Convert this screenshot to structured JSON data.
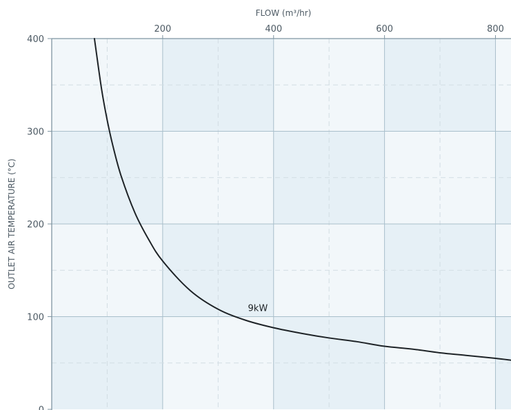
{
  "chart_data": {
    "type": "line",
    "title": "",
    "xlabel": "FLOW (m³/hr)",
    "ylabel": "OUTLET AIR TEMPERATURE (°C)",
    "xlim": [
      0,
      828
    ],
    "ylim": [
      0,
      400
    ],
    "x_ticks": [
      200,
      400,
      600,
      800
    ],
    "y_ticks": [
      0,
      100,
      200,
      300,
      400
    ],
    "x_axis_position": "top",
    "grid": true,
    "colors": {
      "line": "#1e2327",
      "grid_major": "#a9bfcb",
      "grid_minor": "#d2dde3",
      "cell_light": "#f2f7fa",
      "cell_dark": "#e6f0f6"
    },
    "series": [
      {
        "name": "9kW",
        "label_at": [
          350,
          100
        ],
        "x": [
          77,
          80,
          90,
          100,
          110,
          125,
          150,
          175,
          200,
          250,
          300,
          350,
          400,
          450,
          500,
          550,
          600,
          650,
          700,
          750,
          800,
          828
        ],
        "y": [
          400,
          387,
          345,
          312,
          285,
          252,
          212,
          183,
          160,
          128,
          108,
          96,
          88,
          82,
          77,
          73,
          68,
          65,
          61,
          58,
          55,
          53
        ]
      }
    ]
  }
}
